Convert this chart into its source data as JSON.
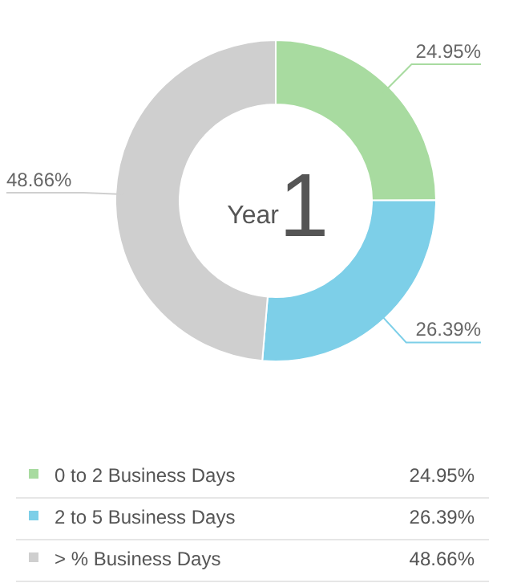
{
  "chart_data": {
    "type": "donut",
    "categories": [
      "0 to 2 Business Days",
      "2 to 5 Business Days",
      "> % Business Days"
    ],
    "values": [
      24.95,
      26.39,
      48.66
    ],
    "colors": [
      "#a8dba0",
      "#7dcfe8",
      "#cfcfcf"
    ],
    "value_labels": [
      "24.95%",
      "26.39%",
      "48.66%"
    ],
    "annotations": [
      "Year",
      "1"
    ],
    "legend": "bottom"
  }
}
